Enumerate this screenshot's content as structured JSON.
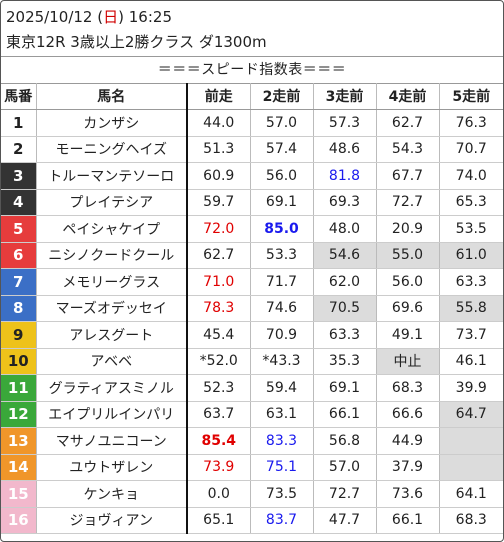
{
  "header": {
    "date": "2025/10/12",
    "weekday_open": "(",
    "weekday": "日",
    "weekday_close": ")",
    "time": "16:25",
    "race": "東京12R 3歳以上2勝クラス ダ1300m"
  },
  "banner": "＝＝＝スピード指数表＝＝＝",
  "columns": [
    "馬番",
    "馬名",
    "前走",
    "2走前",
    "3走前",
    "4走前",
    "5走前"
  ],
  "colors": {
    "red_text": "#e00000",
    "blue_text": "#1a1aee",
    "shade": "#dcdcdc"
  },
  "rows": [
    {
      "num": "1",
      "name": "カンザシ",
      "bg": "#ffffff",
      "fg": "#222222",
      "v": [
        {
          "t": "44.0"
        },
        {
          "t": "57.0"
        },
        {
          "t": "57.3"
        },
        {
          "t": "62.7"
        },
        {
          "t": "76.3"
        }
      ]
    },
    {
      "num": "2",
      "name": "モーニングヘイズ",
      "bg": "#ffffff",
      "fg": "#222222",
      "v": [
        {
          "t": "51.3"
        },
        {
          "t": "57.4"
        },
        {
          "t": "48.6"
        },
        {
          "t": "54.3"
        },
        {
          "t": "70.7"
        }
      ]
    },
    {
      "num": "3",
      "name": "トルーマンテソーロ",
      "bg": "#333333",
      "fg": "#ffffff",
      "v": [
        {
          "t": "60.9"
        },
        {
          "t": "56.0"
        },
        {
          "t": "81.8",
          "c": "blue"
        },
        {
          "t": "67.7"
        },
        {
          "t": "74.0"
        }
      ]
    },
    {
      "num": "4",
      "name": "プレイテシア",
      "bg": "#333333",
      "fg": "#ffffff",
      "v": [
        {
          "t": "59.7"
        },
        {
          "t": "69.1"
        },
        {
          "t": "69.3"
        },
        {
          "t": "72.7"
        },
        {
          "t": "65.3"
        }
      ]
    },
    {
      "num": "5",
      "name": "ペイシャケイプ",
      "bg": "#e63c3c",
      "fg": "#ffffff",
      "v": [
        {
          "t": "72.0",
          "c": "red"
        },
        {
          "t": "85.0",
          "c": "blueb"
        },
        {
          "t": "48.0"
        },
        {
          "t": "20.9"
        },
        {
          "t": "53.5"
        }
      ]
    },
    {
      "num": "6",
      "name": "ニシノクードクール",
      "bg": "#e63c3c",
      "fg": "#ffffff",
      "v": [
        {
          "t": "62.7"
        },
        {
          "t": "53.3"
        },
        {
          "t": "54.6",
          "s": true
        },
        {
          "t": "55.0",
          "s": true
        },
        {
          "t": "61.0",
          "s": true
        }
      ]
    },
    {
      "num": "7",
      "name": "メモリーグラス",
      "bg": "#3b6fc6",
      "fg": "#ffffff",
      "v": [
        {
          "t": "71.0",
          "c": "red"
        },
        {
          "t": "71.7"
        },
        {
          "t": "62.0"
        },
        {
          "t": "56.0"
        },
        {
          "t": "63.3"
        }
      ]
    },
    {
      "num": "8",
      "name": "マーズオデッセイ",
      "bg": "#3b6fc6",
      "fg": "#ffffff",
      "v": [
        {
          "t": "78.3",
          "c": "red"
        },
        {
          "t": "74.6"
        },
        {
          "t": "70.5",
          "s": true
        },
        {
          "t": "69.6"
        },
        {
          "t": "55.8",
          "s": true
        }
      ]
    },
    {
      "num": "9",
      "name": "アレスグート",
      "bg": "#eec21a",
      "fg": "#222222",
      "v": [
        {
          "t": "45.4"
        },
        {
          "t": "70.9"
        },
        {
          "t": "63.3"
        },
        {
          "t": "49.1"
        },
        {
          "t": "73.7"
        }
      ]
    },
    {
      "num": "10",
      "name": "アベベ",
      "bg": "#eec21a",
      "fg": "#222222",
      "v": [
        {
          "t": "*52.0"
        },
        {
          "t": "*43.3"
        },
        {
          "t": "35.3"
        },
        {
          "t": "中止",
          "s": true
        },
        {
          "t": "46.1"
        }
      ]
    },
    {
      "num": "11",
      "name": "グラティアスミノル",
      "bg": "#3aa83a",
      "fg": "#ffffff",
      "v": [
        {
          "t": "52.3"
        },
        {
          "t": "59.4"
        },
        {
          "t": "69.1"
        },
        {
          "t": "68.3"
        },
        {
          "t": "39.9"
        }
      ]
    },
    {
      "num": "12",
      "name": "エイプリルインパリ",
      "bg": "#3aa83a",
      "fg": "#ffffff",
      "v": [
        {
          "t": "63.7"
        },
        {
          "t": "63.1"
        },
        {
          "t": "66.1"
        },
        {
          "t": "66.6"
        },
        {
          "t": "64.7",
          "s": true
        }
      ]
    },
    {
      "num": "13",
      "name": "マサノユニコーン",
      "bg": "#f0962a",
      "fg": "#ffffff",
      "v": [
        {
          "t": "85.4",
          "c": "redb"
        },
        {
          "t": "83.3",
          "c": "blue"
        },
        {
          "t": "56.8"
        },
        {
          "t": "44.9"
        },
        {
          "t": "",
          "s": true
        }
      ]
    },
    {
      "num": "14",
      "name": "ユウトザレン",
      "bg": "#f0962a",
      "fg": "#ffffff",
      "v": [
        {
          "t": "73.9",
          "c": "red"
        },
        {
          "t": "75.1",
          "c": "blue"
        },
        {
          "t": "57.0"
        },
        {
          "t": "37.9"
        },
        {
          "t": "",
          "s": true
        }
      ]
    },
    {
      "num": "15",
      "name": "ケンキョ",
      "bg": "#f2b8cc",
      "fg": "#ffffff",
      "v": [
        {
          "t": "0.0"
        },
        {
          "t": "73.5"
        },
        {
          "t": "72.7"
        },
        {
          "t": "73.6"
        },
        {
          "t": "64.1"
        }
      ]
    },
    {
      "num": "16",
      "name": "ジョヴィアン",
      "bg": "#f2b8cc",
      "fg": "#ffffff",
      "v": [
        {
          "t": "65.1"
        },
        {
          "t": "83.7",
          "c": "blue"
        },
        {
          "t": "47.7"
        },
        {
          "t": "66.1"
        },
        {
          "t": "68.3"
        }
      ]
    }
  ]
}
